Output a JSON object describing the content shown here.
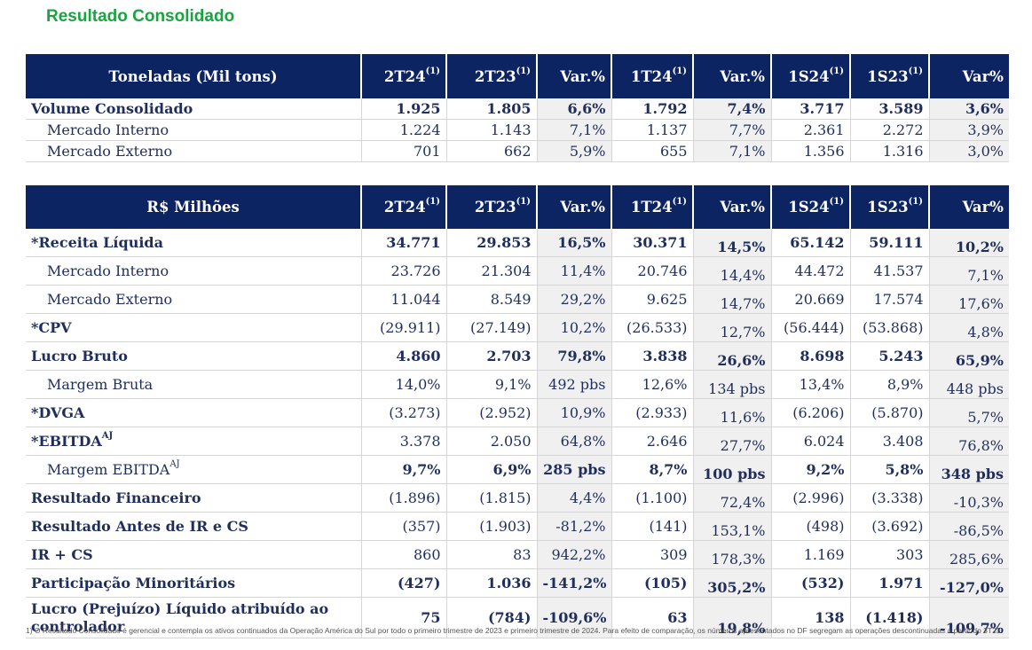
{
  "title": "Resultado Consolidado",
  "table1": {
    "header": [
      "Toneladas (Mil tons)",
      "2T24",
      "2T23",
      "Var.%",
      "1T24",
      "Var.%",
      "1S24",
      "1S23",
      "Var%"
    ],
    "sup": "(1)",
    "rows": [
      {
        "label": "Volume Consolidado",
        "bold": true,
        "indent": false,
        "cells": [
          "1.925",
          "1.805",
          "6,6%",
          "1.792",
          "7,4%",
          "3.717",
          "3.589",
          "3,6%"
        ]
      },
      {
        "label": "Mercado Interno",
        "bold": false,
        "indent": true,
        "cells": [
          "1.224",
          "1.143",
          "7,1%",
          "1.137",
          "7,7%",
          "2.361",
          "2.272",
          "3,9%"
        ]
      },
      {
        "label": "Mercado Externo",
        "bold": false,
        "indent": true,
        "cells": [
          "701",
          "662",
          "5,9%",
          "655",
          "7,1%",
          "1.356",
          "1.316",
          "3,0%"
        ]
      }
    ]
  },
  "table2": {
    "header": [
      "R$ Milhões",
      "2T24",
      "2T23",
      "Var.%",
      "1T24",
      "Var.%",
      "1S24",
      "1S23",
      "Var%"
    ],
    "sup": "(1)",
    "rows": [
      {
        "label": "*Receita Líquida",
        "bold": true,
        "indent": false,
        "cells": [
          "34.771",
          "29.853",
          "16,5%",
          "30.371",
          "14,5%",
          "65.142",
          "59.111",
          "10,2%"
        ]
      },
      {
        "label": "Mercado Interno",
        "bold": false,
        "indent": true,
        "cells": [
          "23.726",
          "21.304",
          "11,4%",
          "20.746",
          "14,4%",
          "44.472",
          "41.537",
          "7,1%"
        ]
      },
      {
        "label": "Mercado Externo",
        "bold": false,
        "indent": true,
        "cells": [
          "11.044",
          "8.549",
          "29,2%",
          "9.625",
          "14,7%",
          "20.669",
          "17.574",
          "17,6%"
        ]
      },
      {
        "label": "*CPV",
        "bold": true,
        "indent": false,
        "cellsBold": false,
        "cells": [
          "(29.911)",
          "(27.149)",
          "10,2%",
          "(26.533)",
          "12,7%",
          "(56.444)",
          "(53.868)",
          "4,8%"
        ]
      },
      {
        "label": "Lucro Bruto",
        "bold": true,
        "indent": false,
        "cells": [
          "4.860",
          "2.703",
          "79,8%",
          "3.838",
          "26,6%",
          "8.698",
          "5.243",
          "65,9%"
        ]
      },
      {
        "label": "Margem Bruta",
        "bold": false,
        "indent": true,
        "cells": [
          "14,0%",
          "9,1%",
          "492 pbs",
          "12,6%",
          "134 pbs",
          "13,4%",
          "8,9%",
          "448 pbs"
        ]
      },
      {
        "label": "*DVGA",
        "bold": true,
        "indent": false,
        "cellsBold": false,
        "cells": [
          "(3.273)",
          "(2.952)",
          "10,9%",
          "(2.933)",
          "11,6%",
          "(6.206)",
          "(5.870)",
          "5,7%"
        ]
      },
      {
        "label": "*EBITDA",
        "labelSup": "AJ",
        "bold": true,
        "indent": false,
        "cellsBold": false,
        "cells": [
          "3.378",
          "2.050",
          "64,8%",
          "2.646",
          "27,7%",
          "6.024",
          "3.408",
          "76,8%"
        ]
      },
      {
        "label": "Margem EBITDA",
        "labelSup": "AJ",
        "bold": false,
        "indent": true,
        "cellsBold": true,
        "cells": [
          "9,7%",
          "6,9%",
          "285 pbs",
          "8,7%",
          "100 pbs",
          "9,2%",
          "5,8%",
          "348 pbs"
        ]
      },
      {
        "label": "Resultado Financeiro",
        "bold": true,
        "indent": false,
        "cellsBold": false,
        "cells": [
          "(1.896)",
          "(1.815)",
          "4,4%",
          "(1.100)",
          "72,4%",
          "(2.996)",
          "(3.338)",
          "-10,3%"
        ]
      },
      {
        "label": "Resultado Antes de IR e CS",
        "bold": true,
        "indent": false,
        "cellsBold": false,
        "cells": [
          "(357)",
          "(1.903)",
          "-81,2%",
          "(141)",
          "153,1%",
          "(498)",
          "(3.692)",
          "-86,5%"
        ]
      },
      {
        "label": "IR + CS",
        "bold": true,
        "indent": false,
        "cellsBold": false,
        "cells": [
          "860",
          "83",
          "942,2%",
          "309",
          "178,3%",
          "1.169",
          "303",
          "285,6%"
        ]
      },
      {
        "label": "Participação Minoritários",
        "bold": true,
        "indent": false,
        "cells": [
          "(427)",
          "1.036",
          "-141,2%",
          "(105)",
          "305,2%",
          "(532)",
          "1.971",
          "-127,0%"
        ]
      },
      {
        "label": "Lucro (Prejuízo) Líquido atribuído ao controlador",
        "bold": true,
        "indent": false,
        "cells": [
          "75",
          "(784)",
          "-109,6%",
          "63",
          "19,8%",
          "138",
          "(1.418)",
          "-109,7%"
        ]
      }
    ]
  },
  "footnote": "1) O Resultado Consolidado é gerencial e contempla os ativos continuados da Operação América do Sul por todo o primeiro trimestre de 2023 e primeiro trimestre de 2024.  Para efeito de comparação, os números apresentados no DF segregam as operações descontinuadas a partir do 3T23."
}
